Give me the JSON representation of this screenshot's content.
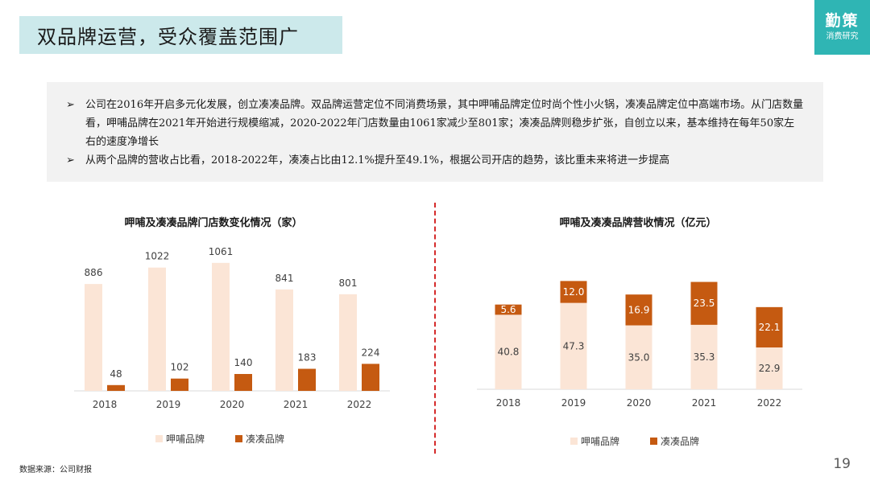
{
  "title": "双品牌运营，受众覆盖范围广",
  "brand": {
    "line1": "勤策",
    "line2": "消费研究"
  },
  "summary": {
    "bullet_symbol": "➢",
    "bullets": [
      "公司在2016年开启多元化发展，创立凑凑品牌。双品牌运营定位不同消费场景，其中呷哺品牌定位时尚个性小火锅，凑凑品牌定位中高端市场。从门店数量看，呷哺品牌在2021年开始进行规模缩减，2020-2022年门店数量由1061家减少至801家；凑凑品牌则稳步扩张，自创立以来，基本维持在每年50家左右的速度净增长",
      "从两个品牌的营收占比看，2018-2022年，凑凑占比由12.1%提升至49.1%，根据公司开店的趋势，该比重未来将进一步提高"
    ]
  },
  "colors": {
    "xiabu": "#fbe5d6",
    "coucou": "#c55a11",
    "accent": "#2fb5b4",
    "divider": "#d52b2b"
  },
  "chart_data": [
    {
      "type": "bar",
      "title": "呷哺及凑凑品牌门店数变化情况（家）",
      "categories": [
        "2018",
        "2019",
        "2020",
        "2021",
        "2022"
      ],
      "series": [
        {
          "name": "呷哺品牌",
          "values": [
            886,
            1022,
            1061,
            841,
            801
          ]
        },
        {
          "name": "凑凑品牌",
          "values": [
            48,
            102,
            140,
            183,
            224
          ]
        }
      ],
      "ylim": [
        0,
        1200
      ],
      "legend": "bottom"
    },
    {
      "type": "stacked-bar",
      "title": "呷哺及凑凑品牌营收情况（亿元）",
      "categories": [
        "2018",
        "2019",
        "2020",
        "2021",
        "2022"
      ],
      "series": [
        {
          "name": "呷哺品牌",
          "values": [
            40.8,
            47.3,
            35.0,
            35.3,
            22.9
          ]
        },
        {
          "name": "凑凑品牌",
          "values": [
            5.6,
            12.0,
            16.9,
            23.5,
            22.1
          ]
        }
      ],
      "ylim": [
        0,
        70
      ],
      "legend": "bottom"
    }
  ],
  "footer": {
    "source": "数据来源：公司财报",
    "page": "19"
  }
}
